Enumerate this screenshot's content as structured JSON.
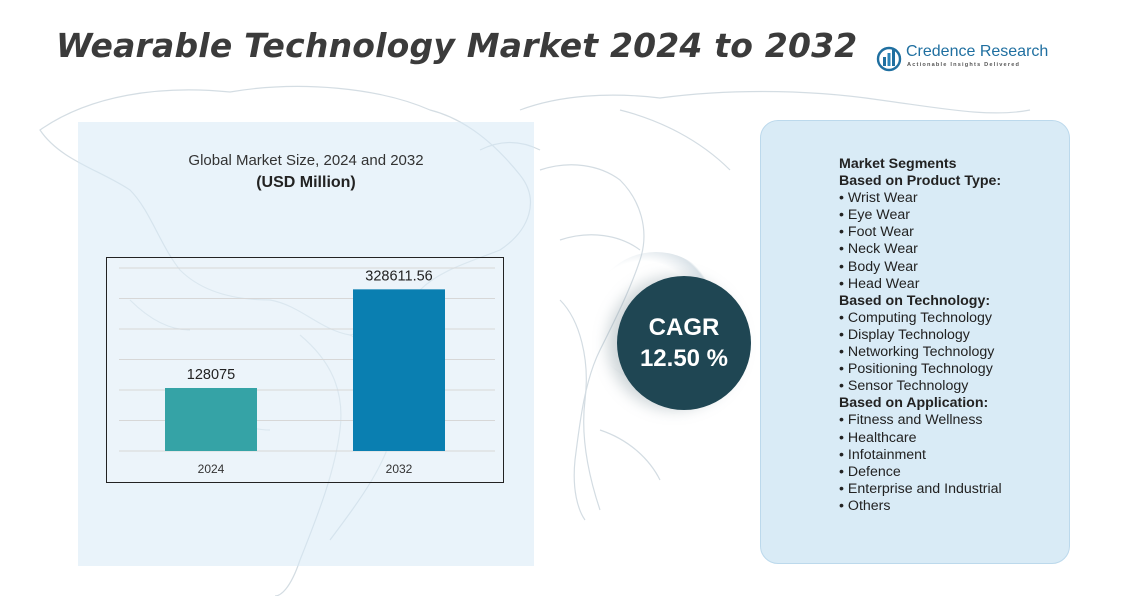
{
  "title": "Wearable Technology Market 2024 to 2032",
  "brand": {
    "name": "Credence Research",
    "tagline": "Actionable Insights Delivered",
    "logo_icon": "bar-chart-circle-logo",
    "color": "#1f6fa0"
  },
  "chart_heading": {
    "line1": "Global Market Size, 2024 and 2032",
    "line2": "(USD Million)"
  },
  "chart_data": {
    "type": "bar",
    "categories": [
      "2024",
      "2032"
    ],
    "values": [
      128075,
      328611.56
    ],
    "value_labels": [
      "128075",
      "328611.56"
    ],
    "colors": [
      "#35a3a6",
      "#0a7fb1"
    ],
    "grid": true,
    "legend": "none"
  },
  "cagr": {
    "label": "CAGR",
    "value": "12.50 %",
    "color": "#1f4653"
  },
  "segments": {
    "title": "Market Segments",
    "groups": [
      {
        "heading": "Based on Product Type:",
        "items": [
          "Wrist Wear",
          "Eye Wear",
          "Foot Wear",
          "Neck Wear",
          "Body Wear",
          "Head Wear"
        ]
      },
      {
        "heading": "Based on Technology:",
        "items": [
          "Computing Technology",
          "Display Technology",
          "Networking Technology",
          "Positioning Technology",
          "Sensor Technology"
        ]
      },
      {
        "heading": "Based on Application:",
        "items": [
          "Fitness and Wellness",
          "Healthcare",
          "Infotainment",
          "Defence",
          "Enterprise and Industrial",
          "Others"
        ]
      }
    ]
  }
}
